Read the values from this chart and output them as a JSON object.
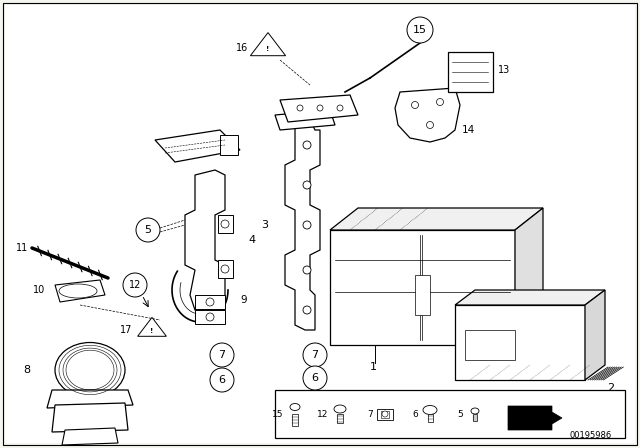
{
  "bg_color": "#f5f5f0",
  "part_number": "00195986",
  "fig_width": 6.4,
  "fig_height": 4.48,
  "dpi": 100
}
